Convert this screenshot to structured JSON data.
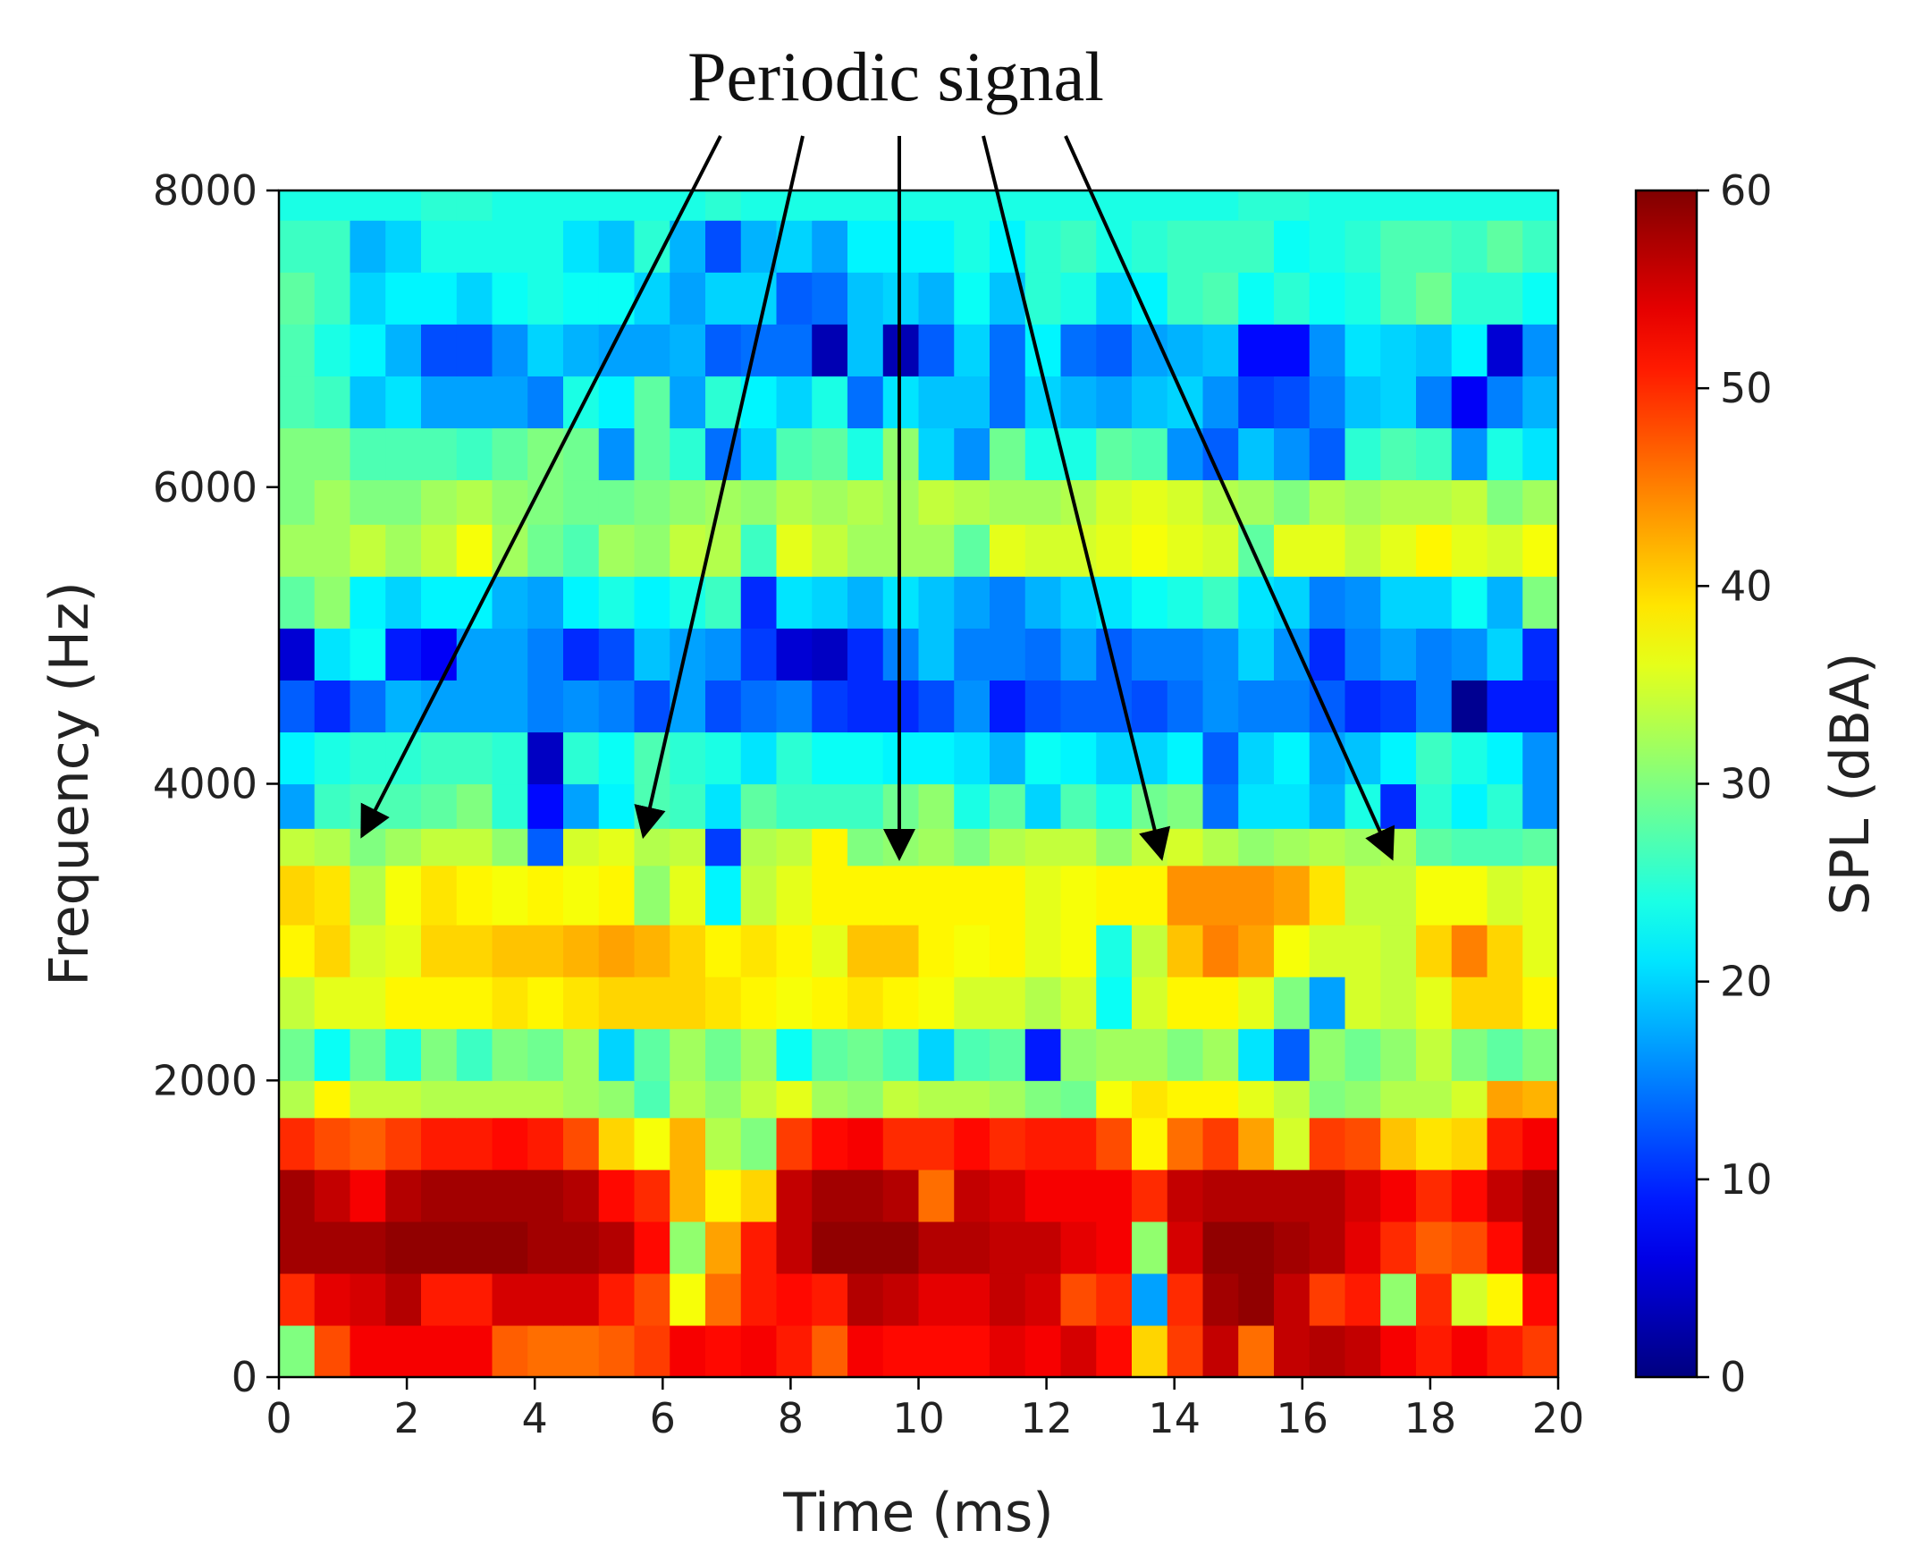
{
  "chart_data": {
    "type": "heatmap",
    "annotation": "Periodic signal",
    "annotation_targets": [
      {
        "x": 1.3,
        "y": 3650
      },
      {
        "x": 5.7,
        "y": 3650
      },
      {
        "x": 9.7,
        "y": 3500
      },
      {
        "x": 13.8,
        "y": 3500
      },
      {
        "x": 17.4,
        "y": 3500
      }
    ],
    "xlabel": "Time (ms)",
    "ylabel": "Frequency (Hz)",
    "xlim": [
      0,
      20
    ],
    "ylim": [
      0,
      8000
    ],
    "xticks": [
      0,
      2,
      4,
      6,
      8,
      10,
      12,
      14,
      16,
      18,
      20
    ],
    "xtick_labels": [
      "0",
      "2",
      "4",
      "6",
      "8",
      "10",
      "12",
      "14",
      "16",
      "18",
      "20"
    ],
    "yticks": [
      0,
      2000,
      4000,
      6000,
      8000
    ],
    "ytick_labels": [
      "0",
      "2000",
      "4000",
      "6000",
      "8000"
    ],
    "colorbar": {
      "label": "SPL (dBA)",
      "range": [
        0,
        60
      ],
      "ticks": [
        0,
        10,
        20,
        30,
        40,
        50,
        60
      ],
      "tick_labels": [
        "0",
        "10",
        "20",
        "30",
        "40",
        "50",
        "60"
      ],
      "colormap": "jet"
    },
    "time_bins": 36,
    "time_step_ms": 0.5714,
    "freq_bin_edges_hz": [
      0,
      350,
      700,
      1050,
      1400,
      1750,
      2000,
      2350,
      2700,
      3050,
      3450,
      3700,
      4000,
      4350,
      4700,
      5050,
      5400,
      5750,
      6050,
      6400,
      6750,
      7100,
      7450,
      7800,
      8000
    ],
    "spl_rows_low_to_high_freq": [
      [
        30,
        48,
        53,
        53,
        53,
        53,
        47,
        46,
        46,
        47,
        49,
        53,
        52,
        53,
        51,
        47,
        53,
        52,
        52,
        52,
        54,
        53,
        55,
        52,
        40,
        49,
        56,
        46,
        56,
        57,
        56,
        53,
        51,
        53,
        51,
        49
      ],
      [
        50,
        54,
        55,
        57,
        51,
        51,
        55,
        55,
        55,
        51,
        48,
        37,
        46,
        51,
        52,
        51,
        57,
        56,
        54,
        54,
        56,
        55,
        48,
        50,
        17,
        50,
        58,
        59,
        56,
        49,
        51,
        31,
        50,
        35,
        38,
        52
      ],
      [
        58,
        58,
        58,
        59,
        59,
        59,
        59,
        58,
        58,
        57,
        52,
        31,
        43,
        51,
        56,
        59,
        59,
        59,
        57,
        57,
        56,
        56,
        54,
        53,
        31,
        55,
        59,
        59,
        58,
        57,
        54,
        50,
        47,
        48,
        52,
        58
      ],
      [
        58,
        56,
        53,
        57,
        58,
        58,
        58,
        58,
        57,
        52,
        50,
        42,
        38,
        40,
        56,
        58,
        58,
        57,
        46,
        56,
        55,
        53,
        53,
        53,
        50,
        56,
        57,
        57,
        57,
        57,
        55,
        53,
        50,
        52,
        56,
        58
      ],
      [
        50,
        48,
        47,
        49,
        51,
        51,
        52,
        51,
        48,
        40,
        37,
        42,
        33,
        30,
        49,
        52,
        53,
        50,
        50,
        52,
        50,
        51,
        51,
        48,
        38,
        46,
        49,
        43,
        35,
        49,
        48,
        41,
        39,
        40,
        51,
        53
      ],
      [
        33,
        38,
        34,
        34,
        33,
        33,
        33,
        33,
        32,
        31,
        27,
        33,
        31,
        34,
        36,
        32,
        31,
        34,
        33,
        33,
        32,
        30,
        29,
        37,
        39,
        38,
        38,
        36,
        34,
        30,
        31,
        33,
        33,
        35,
        43,
        42
      ],
      [
        29,
        23,
        29,
        24,
        30,
        26,
        30,
        29,
        32,
        20,
        28,
        32,
        29,
        32,
        23,
        28,
        29,
        27,
        20,
        27,
        28,
        9,
        31,
        32,
        32,
        30,
        32,
        21,
        13,
        31,
        29,
        31,
        34,
        30,
        28,
        30
      ],
      [
        34,
        36,
        36,
        38,
        38,
        38,
        39,
        38,
        39,
        40,
        40,
        40,
        39,
        38,
        37,
        38,
        39,
        38,
        37,
        35,
        35,
        33,
        35,
        23,
        35,
        38,
        38,
        36,
        30,
        17,
        35,
        34,
        36,
        40,
        40,
        38
      ],
      [
        38,
        40,
        35,
        36,
        40,
        40,
        41,
        41,
        42,
        43,
        42,
        40,
        38,
        39,
        38,
        36,
        41,
        41,
        38,
        37,
        38,
        36,
        37,
        24,
        34,
        41,
        45,
        43,
        37,
        35,
        35,
        34,
        40,
        45,
        40,
        36
      ],
      [
        40,
        39,
        33,
        37,
        39,
        38,
        37,
        38,
        37,
        38,
        31,
        36,
        22,
        34,
        36,
        38,
        38,
        38,
        38,
        38,
        38,
        36,
        37,
        38,
        38,
        44,
        44,
        44,
        43,
        39,
        34,
        34,
        37,
        37,
        35,
        36
      ],
      [
        34,
        33,
        30,
        32,
        34,
        34,
        31,
        13,
        35,
        36,
        33,
        34,
        11,
        33,
        34,
        38,
        30,
        31,
        32,
        30,
        33,
        34,
        34,
        31,
        34,
        35,
        33,
        31,
        32,
        33,
        32,
        33,
        28,
        27,
        27,
        28
      ],
      [
        17,
        26,
        27,
        27,
        28,
        30,
        25,
        8,
        17,
        22,
        27,
        26,
        21,
        28,
        26,
        26,
        26,
        29,
        31,
        24,
        28,
        20,
        27,
        24,
        29,
        30,
        14,
        21,
        21,
        18,
        24,
        10,
        25,
        22,
        25,
        16
      ],
      [
        22,
        24,
        25,
        25,
        26,
        26,
        25,
        4,
        25,
        23,
        27,
        25,
        24,
        21,
        25,
        23,
        23,
        22,
        22,
        21,
        18,
        23,
        22,
        20,
        20,
        22,
        13,
        20,
        22,
        17,
        19,
        22,
        26,
        24,
        22,
        16
      ],
      [
        13,
        10,
        14,
        18,
        17,
        17,
        17,
        15,
        16,
        15,
        12,
        17,
        12,
        14,
        15,
        11,
        10,
        10,
        12,
        16,
        9,
        12,
        13,
        13,
        12,
        14,
        16,
        15,
        15,
        13,
        10,
        11,
        15,
        1,
        9,
        9
      ],
      [
        5,
        21,
        23,
        9,
        7,
        17,
        17,
        15,
        10,
        12,
        19,
        17,
        16,
        11,
        5,
        4,
        10,
        15,
        19,
        15,
        15,
        14,
        17,
        13,
        15,
        15,
        16,
        20,
        16,
        10,
        15,
        17,
        15,
        16,
        20,
        10
      ],
      [
        28,
        31,
        22,
        20,
        22,
        22,
        18,
        17,
        22,
        24,
        22,
        24,
        26,
        10,
        21,
        20,
        18,
        21,
        19,
        17,
        15,
        18,
        20,
        21,
        23,
        24,
        26,
        21,
        20,
        15,
        16,
        20,
        20,
        23,
        18,
        30
      ],
      [
        32,
        32,
        34,
        32,
        34,
        37,
        32,
        29,
        27,
        32,
        31,
        34,
        33,
        26,
        36,
        34,
        32,
        32,
        32,
        28,
        36,
        35,
        35,
        36,
        37,
        36,
        35,
        28,
        36,
        36,
        34,
        36,
        38,
        36,
        35,
        37
      ],
      [
        30,
        32,
        30,
        30,
        32,
        33,
        31,
        30,
        29,
        29,
        30,
        31,
        32,
        31,
        33,
        32,
        33,
        32,
        34,
        33,
        32,
        32,
        33,
        35,
        36,
        35,
        33,
        32,
        30,
        33,
        32,
        33,
        33,
        34,
        30,
        32
      ],
      [
        30,
        30,
        27,
        27,
        27,
        26,
        28,
        30,
        29,
        16,
        28,
        25,
        14,
        20,
        27,
        28,
        24,
        31,
        20,
        16,
        29,
        24,
        24,
        28,
        27,
        16,
        13,
        19,
        16,
        13,
        25,
        27,
        26,
        16,
        24,
        21
      ],
      [
        27,
        26,
        19,
        21,
        17,
        17,
        17,
        15,
        24,
        22,
        28,
        17,
        25,
        22,
        20,
        24,
        14,
        21,
        19,
        19,
        14,
        20,
        18,
        17,
        19,
        20,
        16,
        11,
        12,
        15,
        19,
        20,
        15,
        7,
        15,
        18
      ],
      [
        27,
        24,
        22,
        18,
        12,
        12,
        16,
        20,
        18,
        17,
        17,
        18,
        13,
        14,
        14,
        3,
        19,
        3,
        13,
        20,
        14,
        22,
        14,
        13,
        17,
        18,
        19,
        8,
        8,
        16,
        21,
        20,
        19,
        22,
        5,
        16
      ],
      [
        28,
        26,
        20,
        22,
        22,
        20,
        23,
        24,
        23,
        23,
        20,
        17,
        20,
        20,
        13,
        14,
        19,
        20,
        18,
        23,
        19,
        25,
        24,
        20,
        22,
        26,
        27,
        23,
        25,
        23,
        24,
        27,
        29,
        25,
        25,
        23
      ],
      [
        26,
        26,
        18,
        20,
        24,
        24,
        24,
        24,
        21,
        19,
        25,
        18,
        12,
        18,
        20,
        17,
        22,
        22,
        22,
        24,
        22,
        25,
        26,
        24,
        25,
        26,
        26,
        26,
        23,
        24,
        25,
        27,
        27,
        26,
        28,
        26
      ],
      [
        24,
        24,
        24,
        24,
        25,
        25,
        24,
        24,
        24,
        24,
        24,
        24,
        25,
        24,
        24,
        24,
        24,
        24,
        24,
        24,
        24,
        24,
        24,
        24,
        24,
        24,
        24,
        25,
        25,
        24,
        24,
        24,
        24,
        24,
        24,
        24
      ]
    ]
  }
}
